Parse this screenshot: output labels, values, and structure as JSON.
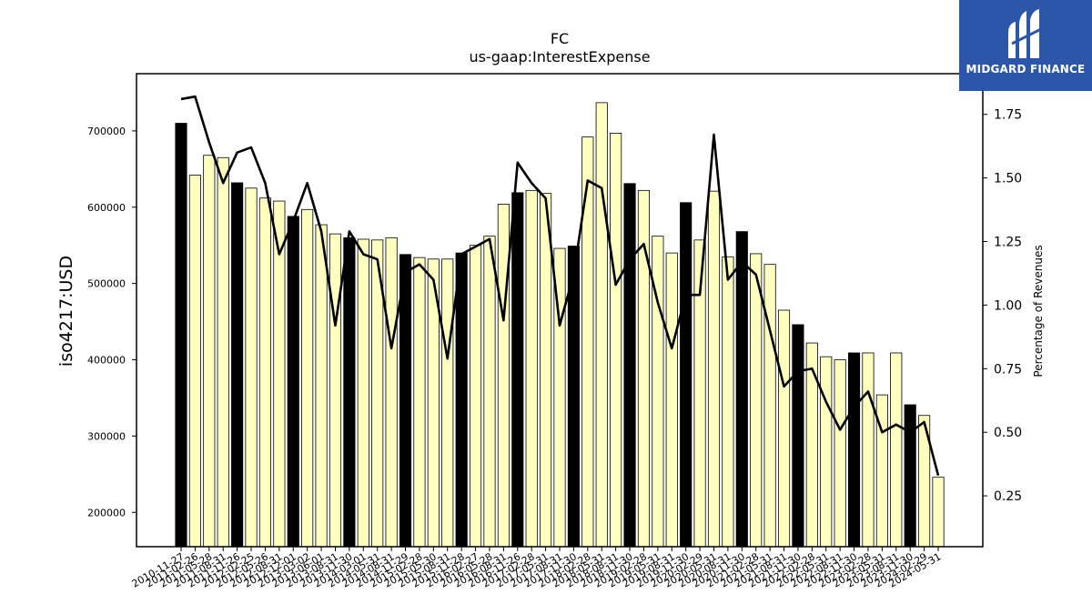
{
  "brand": {
    "name": "MIDGARD FINANCE",
    "color": "#2c57a8"
  },
  "chart_data": {
    "type": "bar",
    "title": "FC",
    "subtitle": "us-gaap:InterestExpense",
    "ylabel": "iso4217:USD",
    "y2label": "Percentage of Revenues",
    "ylim": [
      155000,
      775000
    ],
    "y2lim": [
      0.05,
      1.91
    ],
    "yticks": [
      200000,
      300000,
      400000,
      500000,
      600000,
      700000
    ],
    "y2ticks": [
      0.25,
      0.5,
      0.75,
      1.0,
      1.25,
      1.5,
      1.75
    ],
    "y2tick_labels": [
      "0.25",
      "0.50",
      "0.75",
      "1.00",
      "1.25",
      "1.50",
      "1.75"
    ],
    "grid": false,
    "colors": {
      "annual_bar": "#000000",
      "quarter_bar": "#ffffc0",
      "line": "#000000"
    },
    "categories": [
      "2010-11-27",
      "2011-02-26",
      "2011-05-28",
      "2011-08-31",
      "2011-11-26",
      "2012-02-25",
      "2012-05-26",
      "2012-08-31",
      "2012-12-01",
      "2013-03-02",
      "2013-06-01",
      "2013-08-31",
      "2013-11-30",
      "2014-03-01",
      "2014-05-31",
      "2014-08-31",
      "2014-11-29",
      "2015-02-28",
      "2015-05-30",
      "2015-08-31",
      "2015-11-28",
      "2016-02-27",
      "2016-05-28",
      "2016-08-31",
      "2016-11-26",
      "2017-02-28",
      "2017-05-31",
      "2017-08-31",
      "2017-11-30",
      "2018-02-28",
      "2018-05-31",
      "2018-08-31",
      "2018-11-30",
      "2019-02-28",
      "2019-05-31",
      "2019-08-31",
      "2019-11-30",
      "2020-02-29",
      "2020-05-31",
      "2020-08-31",
      "2020-11-30",
      "2021-02-28",
      "2021-05-31",
      "2021-08-31",
      "2021-11-30",
      "2022-02-28",
      "2022-05-31",
      "2022-08-31",
      "2022-11-30",
      "2023-02-28",
      "2023-05-31",
      "2023-08-31",
      "2023-11-30",
      "2024-02-29",
      "2024-05-31"
    ],
    "values": [
      710000,
      642000,
      668000,
      665000,
      632000,
      625000,
      612000,
      608000,
      588000,
      597000,
      577000,
      565000,
      560000,
      558000,
      557000,
      560000,
      538000,
      534000,
      532000,
      532000,
      540000,
      550000,
      562000,
      604000,
      619000,
      622000,
      618000,
      546000,
      549000,
      692000,
      737000,
      697000,
      631000,
      622000,
      562000,
      540000,
      606000,
      557000,
      621000,
      535000,
      568000,
      539000,
      525000,
      465000,
      446000,
      422000,
      404000,
      400000,
      409000,
      409000,
      354000,
      409000,
      341000,
      327000,
      246000
    ],
    "annual": [
      true,
      false,
      false,
      false,
      true,
      false,
      false,
      false,
      true,
      false,
      false,
      false,
      true,
      false,
      false,
      false,
      true,
      false,
      false,
      false,
      true,
      false,
      false,
      false,
      true,
      false,
      false,
      false,
      true,
      false,
      false,
      false,
      true,
      false,
      false,
      false,
      true,
      false,
      false,
      false,
      true,
      false,
      false,
      false,
      true,
      false,
      false,
      false,
      true,
      false,
      false,
      false,
      true,
      false,
      false
    ],
    "percent_of_revenues": [
      1.81,
      1.82,
      1.64,
      1.48,
      1.6,
      1.62,
      1.48,
      1.2,
      1.33,
      1.48,
      1.29,
      0.92,
      1.29,
      1.2,
      1.18,
      0.83,
      1.13,
      1.16,
      1.1,
      0.79,
      1.2,
      1.23,
      1.26,
      0.94,
      1.56,
      1.48,
      1.42,
      0.92,
      1.12,
      1.49,
      1.46,
      1.08,
      1.18,
      1.24,
      1.01,
      0.83,
      1.04,
      1.04,
      1.67,
      1.1,
      1.17,
      1.12,
      0.9,
      0.68,
      0.74,
      0.75,
      0.62,
      0.51,
      0.6,
      0.66,
      0.5,
      0.53,
      0.5,
      0.54,
      0.33
    ]
  }
}
